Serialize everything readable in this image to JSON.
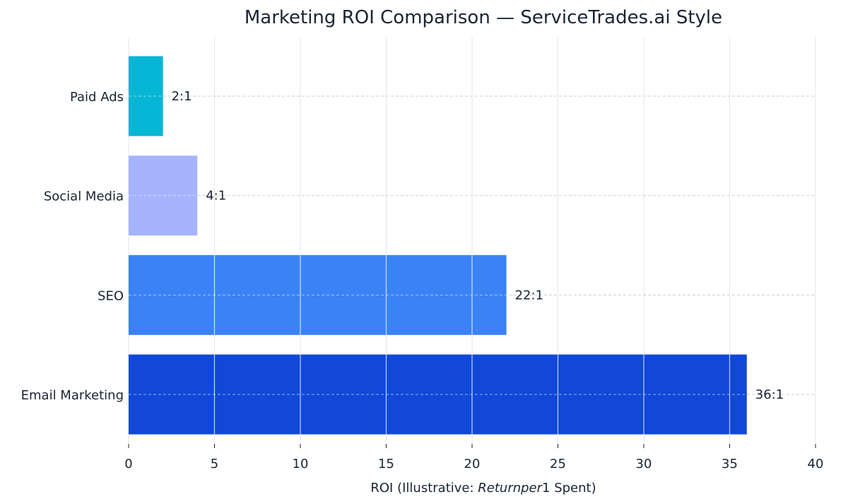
{
  "chart_data": {
    "type": "bar",
    "orientation": "horizontal",
    "title": "Marketing ROI Comparison — ServiceTrades.ai Style",
    "xlabel_parts": [
      "ROI (Illustrative: ",
      "Returnper",
      "1 Spent)"
    ],
    "ylabel": "",
    "categories": [
      "Paid Ads",
      "Social Media",
      "SEO",
      "Email Marketing"
    ],
    "values": [
      2,
      4,
      22,
      36
    ],
    "data_labels": [
      "2:1",
      "4:1",
      "22:1",
      "36:1"
    ],
    "colors": [
      "#06b6d4",
      "#a5b4fc",
      "#3b82f6",
      "#1148d8"
    ],
    "xlim": [
      0,
      40
    ],
    "xticks": [
      0,
      5,
      10,
      15,
      20,
      25,
      30,
      35,
      40
    ],
    "grid": "on",
    "legend": "none"
  }
}
